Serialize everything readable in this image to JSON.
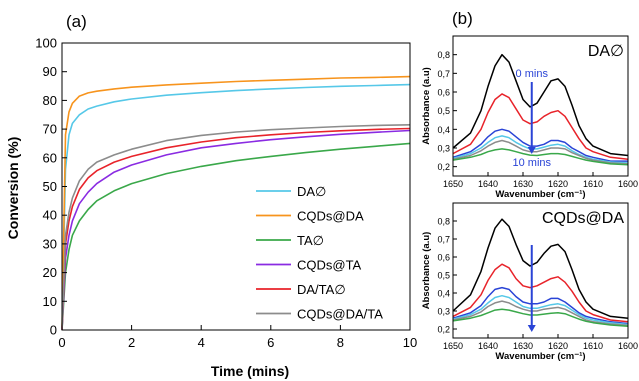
{
  "colors": {
    "da": "#56c8e8",
    "cqds_da": "#f7941d",
    "ta": "#3aa84a",
    "cqds_ta": "#8a2be2",
    "da_ta": "#e8232a",
    "cqds_da_ta": "#8c8c8c",
    "arrow": "#2a44d6",
    "axis": "#000000"
  },
  "chart_data": [
    {
      "panel": "(a)",
      "type": "line",
      "xlabel": "Time (mins)",
      "ylabel": "Conversion (%)",
      "xlim": [
        0,
        10
      ],
      "ylim": [
        0,
        100
      ],
      "xticks": [
        0,
        2,
        4,
        6,
        8,
        10
      ],
      "yticks": [
        0,
        10,
        20,
        30,
        40,
        50,
        60,
        70,
        80,
        90,
        100
      ],
      "grid": false,
      "legend": "bottom-right",
      "x": [
        0,
        0.1,
        0.2,
        0.3,
        0.5,
        0.75,
        1,
        1.5,
        2,
        3,
        4,
        5,
        6,
        7,
        8,
        9,
        10
      ],
      "series": [
        {
          "name": "DA∅",
          "color_key": "da",
          "values": [
            0,
            56,
            68,
            72,
            75,
            77,
            78,
            79.5,
            80.5,
            81.8,
            82.7,
            83.4,
            84,
            84.5,
            84.9,
            85.2,
            85.5
          ]
        },
        {
          "name": "CQDs@DA",
          "color_key": "cqds_da",
          "values": [
            0,
            68,
            76,
            79,
            81.5,
            82.6,
            83.2,
            84,
            84.6,
            85.4,
            86,
            86.6,
            87,
            87.4,
            87.8,
            88,
            88.3
          ]
        },
        {
          "name": "TA∅",
          "color_key": "ta",
          "values": [
            0,
            20,
            28,
            33,
            38,
            42,
            45,
            48.5,
            51,
            54.5,
            57,
            59,
            60.5,
            61.8,
            63,
            64,
            65
          ]
        },
        {
          "name": "CQDs@TA",
          "color_key": "cqds_ta",
          "values": [
            0,
            25,
            33,
            38,
            44,
            48,
            51,
            55,
            57.5,
            61,
            63.5,
            65,
            66.3,
            67.3,
            68.2,
            68.9,
            69.5
          ]
        },
        {
          "name": "DA/TA∅",
          "color_key": "da_ta",
          "values": [
            0,
            30,
            38,
            43,
            49,
            53,
            55.5,
            58.5,
            60.5,
            63.5,
            65.5,
            67,
            68,
            68.8,
            69.4,
            69.9,
            70.2
          ]
        },
        {
          "name": "CQDs@DA/TA",
          "color_key": "cqds_da_ta",
          "values": [
            0,
            33,
            41,
            46,
            52,
            56,
            58.5,
            61,
            63,
            66,
            67.8,
            69,
            69.8,
            70.4,
            70.9,
            71.3,
            71.5
          ]
        }
      ]
    },
    {
      "panel": "(b)",
      "type": "line",
      "label": "DA∅",
      "xlabel": "Wavenumber (cm⁻¹)",
      "ylabel": "Absorbance (a.u)",
      "xlim": [
        1650,
        1600
      ],
      "ylim": [
        0.15,
        0.9
      ],
      "xticks": [
        1650,
        1640,
        1630,
        1620,
        1610,
        1600
      ],
      "yticks": [
        0.2,
        0.3,
        0.4,
        0.5,
        0.6,
        0.7,
        0.8
      ],
      "ytick_labels": [
        "0,2",
        "0,3",
        "0,4",
        "0,5",
        "0,6",
        "0,7",
        "0,8"
      ],
      "annotation_top": "0 mins",
      "annotation_bottom": "10 mins",
      "x": [
        1650,
        1645,
        1642,
        1640,
        1638,
        1636,
        1634,
        1632,
        1630,
        1628,
        1626,
        1624,
        1622,
        1620,
        1618,
        1616,
        1614,
        1612,
        1610,
        1605,
        1600
      ],
      "series": [
        {
          "color_key": "axis",
          "values": [
            0.3,
            0.38,
            0.5,
            0.63,
            0.74,
            0.8,
            0.76,
            0.66,
            0.56,
            0.52,
            0.54,
            0.6,
            0.66,
            0.67,
            0.63,
            0.53,
            0.42,
            0.35,
            0.31,
            0.27,
            0.26
          ]
        },
        {
          "color_key": "da_ta",
          "values": [
            0.27,
            0.32,
            0.4,
            0.49,
            0.56,
            0.59,
            0.57,
            0.51,
            0.45,
            0.43,
            0.44,
            0.47,
            0.49,
            0.5,
            0.47,
            0.41,
            0.35,
            0.3,
            0.28,
            0.25,
            0.24
          ]
        },
        {
          "color_key": "arrow",
          "values": [
            0.25,
            0.28,
            0.32,
            0.36,
            0.39,
            0.4,
            0.39,
            0.36,
            0.33,
            0.31,
            0.31,
            0.32,
            0.34,
            0.34,
            0.33,
            0.3,
            0.28,
            0.26,
            0.25,
            0.23,
            0.23
          ]
        },
        {
          "color_key": "da",
          "values": [
            0.245,
            0.27,
            0.3,
            0.33,
            0.355,
            0.365,
            0.355,
            0.33,
            0.31,
            0.295,
            0.295,
            0.305,
            0.315,
            0.32,
            0.31,
            0.285,
            0.265,
            0.25,
            0.24,
            0.225,
            0.22
          ]
        },
        {
          "color_key": "cqds_da_ta",
          "values": [
            0.24,
            0.26,
            0.285,
            0.31,
            0.33,
            0.34,
            0.33,
            0.31,
            0.29,
            0.28,
            0.28,
            0.29,
            0.3,
            0.3,
            0.295,
            0.275,
            0.26,
            0.245,
            0.235,
            0.22,
            0.215
          ]
        },
        {
          "color_key": "ta",
          "values": [
            0.235,
            0.25,
            0.265,
            0.28,
            0.29,
            0.295,
            0.29,
            0.28,
            0.27,
            0.262,
            0.26,
            0.265,
            0.27,
            0.27,
            0.265,
            0.255,
            0.245,
            0.235,
            0.228,
            0.215,
            0.21
          ]
        }
      ]
    },
    {
      "panel": "(b)",
      "type": "line",
      "label": "CQDs@DA",
      "xlabel": "Wavenumber (cm⁻¹)",
      "ylabel": "Absorbance (a.u)",
      "xlim": [
        1650,
        1600
      ],
      "ylim": [
        0.15,
        0.9
      ],
      "xticks": [
        1650,
        1640,
        1630,
        1620,
        1610,
        1600
      ],
      "yticks": [
        0.2,
        0.3,
        0.4,
        0.5,
        0.6,
        0.7,
        0.8
      ],
      "ytick_labels": [
        "0,2",
        "0,3",
        "0,4",
        "0,5",
        "0,6",
        "0,7",
        "0,8"
      ],
      "x": [
        1650,
        1645,
        1642,
        1640,
        1638,
        1636,
        1634,
        1632,
        1630,
        1628,
        1626,
        1624,
        1622,
        1620,
        1618,
        1616,
        1614,
        1612,
        1610,
        1605,
        1600
      ],
      "series": [
        {
          "color_key": "axis",
          "values": [
            0.3,
            0.39,
            0.52,
            0.65,
            0.76,
            0.81,
            0.77,
            0.67,
            0.58,
            0.55,
            0.57,
            0.62,
            0.66,
            0.67,
            0.63,
            0.53,
            0.42,
            0.35,
            0.31,
            0.27,
            0.26
          ]
        },
        {
          "color_key": "da_ta",
          "values": [
            0.27,
            0.32,
            0.39,
            0.47,
            0.53,
            0.56,
            0.54,
            0.48,
            0.44,
            0.43,
            0.44,
            0.46,
            0.48,
            0.49,
            0.46,
            0.41,
            0.35,
            0.3,
            0.28,
            0.25,
            0.24
          ]
        },
        {
          "color_key": "arrow",
          "values": [
            0.26,
            0.29,
            0.33,
            0.38,
            0.42,
            0.43,
            0.42,
            0.38,
            0.35,
            0.34,
            0.34,
            0.35,
            0.37,
            0.37,
            0.35,
            0.32,
            0.29,
            0.27,
            0.26,
            0.24,
            0.23
          ]
        },
        {
          "color_key": "da",
          "values": [
            0.255,
            0.28,
            0.31,
            0.345,
            0.375,
            0.385,
            0.375,
            0.35,
            0.325,
            0.315,
            0.315,
            0.325,
            0.335,
            0.34,
            0.33,
            0.305,
            0.28,
            0.26,
            0.25,
            0.235,
            0.225
          ]
        },
        {
          "color_key": "cqds_da_ta",
          "values": [
            0.25,
            0.27,
            0.295,
            0.325,
            0.345,
            0.355,
            0.345,
            0.325,
            0.31,
            0.3,
            0.3,
            0.31,
            0.315,
            0.32,
            0.31,
            0.29,
            0.27,
            0.25,
            0.24,
            0.228,
            0.22
          ]
        },
        {
          "color_key": "ta",
          "values": [
            0.245,
            0.26,
            0.275,
            0.29,
            0.305,
            0.31,
            0.305,
            0.295,
            0.285,
            0.278,
            0.278,
            0.283,
            0.288,
            0.29,
            0.285,
            0.27,
            0.255,
            0.243,
            0.235,
            0.222,
            0.215
          ]
        }
      ]
    }
  ]
}
